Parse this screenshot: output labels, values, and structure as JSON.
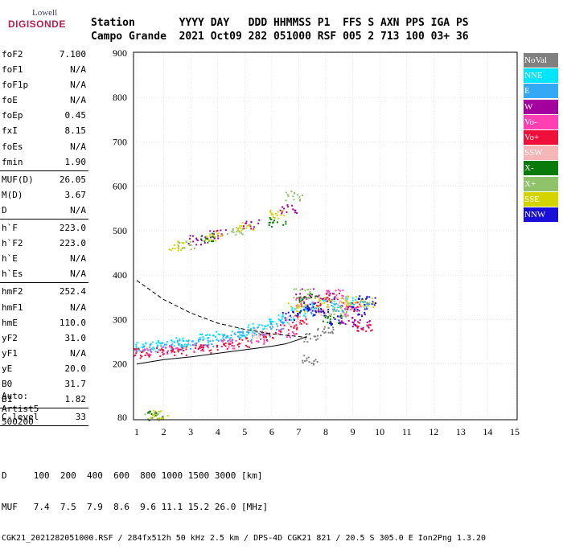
{
  "logo": {
    "line1": "Lowell",
    "line2": "DIGISONDE"
  },
  "header": {
    "row1": "Station       YYYY DAY   DDD HHMMSS P1  FFS S AXN PPS IGA PS",
    "row2": "Campo Grande  2021 Oct09 282 051000 RSF 005 2 713 100 03+ 36"
  },
  "params": [
    {
      "group": [
        {
          "label": "foF2",
          "value": "7.100"
        },
        {
          "label": "foF1",
          "value": "N/A"
        },
        {
          "label": "foF1p",
          "value": "N/A"
        },
        {
          "label": "foE",
          "value": "N/A"
        },
        {
          "label": "foEp",
          "value": "0.45"
        },
        {
          "label": "fxI",
          "value": "8.15"
        },
        {
          "label": "foEs",
          "value": "N/A"
        },
        {
          "label": "fmin",
          "value": "1.90"
        }
      ]
    },
    {
      "group": [
        {
          "label": "MUF(D)",
          "value": "26.05"
        },
        {
          "label": "M(D)",
          "value": "3.67"
        },
        {
          "label": "D",
          "value": "N/A"
        }
      ]
    },
    {
      "group": [
        {
          "label": "h`F",
          "value": "223.0"
        },
        {
          "label": "h`F2",
          "value": "223.0"
        },
        {
          "label": "h`E",
          "value": "N/A"
        },
        {
          "label": "h`Es",
          "value": "N/A"
        }
      ]
    },
    {
      "group": [
        {
          "label": "hmF2",
          "value": "252.4"
        },
        {
          "label": "hmF1",
          "value": "N/A"
        },
        {
          "label": "hmE",
          "value": "110.0"
        },
        {
          "label": "yF2",
          "value": "31.0"
        },
        {
          "label": "yF1",
          "value": "N/A"
        },
        {
          "label": "yE",
          "value": "20.0"
        },
        {
          "label": "B0",
          "value": "31.7"
        },
        {
          "label": "B1",
          "value": "1.82"
        }
      ]
    },
    {
      "group": [
        {
          "label": "C-level",
          "value": "33"
        }
      ]
    }
  ],
  "auto": {
    "line1": "Auto:",
    "line2": "Artist5",
    "line3": "500200"
  },
  "footer": {
    "line1": "D     100  200  400  600  800 1000 1500 3000 [km]",
    "line2": "MUF   7.4  7.5  7.9  8.6  9.6 11.1 15.2 26.0 [MHz]",
    "line3": "CGK21_2021282051000.RSF / 284fx512h 50 kHz 2.5 km / DPS-4D CGK21 821 / 20.5 S 305.0 E Ion2Png 1.3.20"
  },
  "legend": [
    {
      "label": "NoVal",
      "color": "#808080",
      "text_color": "#ffffff"
    },
    {
      "label": "NNE",
      "color": "#00e5ff",
      "text_color": "#ffffff"
    },
    {
      "label": "E",
      "color": "#33a8f5",
      "text_color": "#ffffff"
    },
    {
      "label": "W",
      "color": "#a3009e",
      "text_color": "#ffffff"
    },
    {
      "label": "Vo-",
      "color": "#ff3fb2",
      "text_color": "#ffffff"
    },
    {
      "label": "Vo+",
      "color": "#ef0f3a",
      "text_color": "#ffffff"
    },
    {
      "label": "SSW",
      "color": "#f4b6b6",
      "text_color": "#ffffff"
    },
    {
      "label": "X-",
      "color": "#0a7a0a",
      "text_color": "#ffffff"
    },
    {
      "label": "X+",
      "color": "#8fc36a",
      "text_color": "#ffffff"
    },
    {
      "label": "SSE",
      "color": "#d3d300",
      "text_color": "#ffffff"
    },
    {
      "label": "NNW",
      "color": "#1a0fd6",
      "text_color": "#ffffff"
    }
  ],
  "chart_data": {
    "type": "scatter",
    "title": "",
    "xlabel": "",
    "ylabel": "",
    "xlim": [
      1,
      15
    ],
    "ylim": [
      80,
      900
    ],
    "x_ticks": [
      1,
      2,
      3,
      4,
      5,
      6,
      7,
      8,
      9,
      10,
      11,
      12,
      13,
      14,
      15
    ],
    "y_ticks": [
      80,
      200,
      300,
      400,
      500,
      600,
      700,
      800,
      900
    ],
    "grid": true,
    "legend_position": "right",
    "series": [
      {
        "name": "NNE",
        "color": "#00e5ff",
        "points": [
          [
            1.2,
            240
          ],
          [
            1.8,
            245
          ],
          [
            2.4,
            250
          ],
          [
            3.0,
            252
          ],
          [
            3.6,
            258
          ],
          [
            4.2,
            265
          ],
          [
            4.8,
            272
          ],
          [
            5.4,
            282
          ],
          [
            6.0,
            292
          ],
          [
            6.5,
            305
          ],
          [
            7.0,
            320
          ],
          [
            7.5,
            330
          ],
          [
            8.2,
            340
          ],
          [
            9.0,
            345
          ]
        ]
      },
      {
        "name": "E",
        "color": "#33a8f5",
        "points": [
          [
            1.3,
            236
          ],
          [
            2.0,
            240
          ],
          [
            2.8,
            244
          ],
          [
            3.5,
            250
          ],
          [
            4.3,
            260
          ],
          [
            5.0,
            266
          ],
          [
            5.6,
            274
          ],
          [
            6.2,
            288
          ],
          [
            7.4,
            318
          ],
          [
            8.5,
            330
          ],
          [
            9.3,
            335
          ]
        ]
      },
      {
        "name": "W",
        "color": "#a3009e",
        "points": [
          [
            3.2,
            480
          ],
          [
            4.0,
            495
          ],
          [
            5.2,
            515
          ],
          [
            6.6,
            550
          ],
          [
            7.2,
            360
          ],
          [
            8.0,
            350
          ],
          [
            8.8,
            300
          ],
          [
            9.3,
            290
          ]
        ]
      },
      {
        "name": "Vo-",
        "color": "#ff3fb2",
        "points": [
          [
            1.2,
            228
          ],
          [
            2.2,
            232
          ],
          [
            3.3,
            238
          ],
          [
            4.4,
            246
          ],
          [
            5.5,
            256
          ],
          [
            6.5,
            272
          ],
          [
            7.2,
            340
          ],
          [
            8.3,
            360
          ],
          [
            9.0,
            320
          ]
        ]
      },
      {
        "name": "Vo+",
        "color": "#ef0f3a",
        "points": [
          [
            1.2,
            225
          ],
          [
            2.0,
            228
          ],
          [
            2.6,
            232
          ],
          [
            3.4,
            236
          ],
          [
            4.2,
            242
          ],
          [
            5.0,
            250
          ],
          [
            5.8,
            262
          ],
          [
            6.6,
            280
          ],
          [
            7.0,
            300
          ],
          [
            7.6,
            330
          ],
          [
            8.2,
            350
          ],
          [
            8.9,
            330
          ],
          [
            9.4,
            285
          ]
        ]
      },
      {
        "name": "SSW",
        "color": "#f4b6b6",
        "points": [
          [
            5.5,
            270
          ],
          [
            6.8,
            300
          ],
          [
            7.8,
            320
          ],
          [
            8.6,
            340
          ]
        ]
      },
      {
        "name": "X-",
        "color": "#0a7a0a",
        "points": [
          [
            1.7,
            85
          ],
          [
            3.6,
            485
          ],
          [
            6.2,
            520
          ],
          [
            7.3,
            350
          ],
          [
            8.2,
            300
          ]
        ]
      },
      {
        "name": "X+",
        "color": "#8fc36a",
        "points": [
          [
            1.6,
            84
          ],
          [
            2.8,
            470
          ],
          [
            4.6,
            500
          ],
          [
            6.8,
            580
          ],
          [
            7.1,
            360
          ],
          [
            8.5,
            320
          ]
        ]
      },
      {
        "name": "SSE",
        "color": "#d3d300",
        "points": [
          [
            1.8,
            86
          ],
          [
            2.5,
            468
          ],
          [
            3.8,
            490
          ],
          [
            5.0,
            510
          ],
          [
            6.2,
            540
          ],
          [
            6.9,
            330
          ],
          [
            7.9,
            340
          ],
          [
            8.8,
            345
          ],
          [
            9.5,
            340
          ]
        ]
      },
      {
        "name": "NNW",
        "color": "#1a0fd6",
        "points": [
          [
            6.7,
            310
          ],
          [
            7.3,
            330
          ],
          [
            7.8,
            320
          ],
          [
            8.4,
            300
          ],
          [
            9.2,
            320
          ],
          [
            9.5,
            345
          ]
        ]
      },
      {
        "name": "NoVal",
        "color": "#808080",
        "points": [
          [
            7.4,
            210
          ],
          [
            7.5,
            260
          ],
          [
            8.0,
            280
          ]
        ]
      }
    ],
    "lines": [
      {
        "style": "dashed",
        "points": [
          [
            1,
            388
          ],
          [
            2,
            345
          ],
          [
            3,
            315
          ],
          [
            4,
            292
          ],
          [
            5,
            278
          ],
          [
            6,
            268
          ],
          [
            7,
            262
          ],
          [
            7.3,
            260
          ]
        ]
      },
      {
        "style": "solid",
        "points": [
          [
            1,
            200
          ],
          [
            2,
            210
          ],
          [
            3,
            216
          ],
          [
            4,
            224
          ],
          [
            5,
            232
          ],
          [
            6,
            240
          ],
          [
            6.5,
            245
          ],
          [
            7,
            255
          ],
          [
            7.3,
            262
          ]
        ]
      }
    ]
  }
}
